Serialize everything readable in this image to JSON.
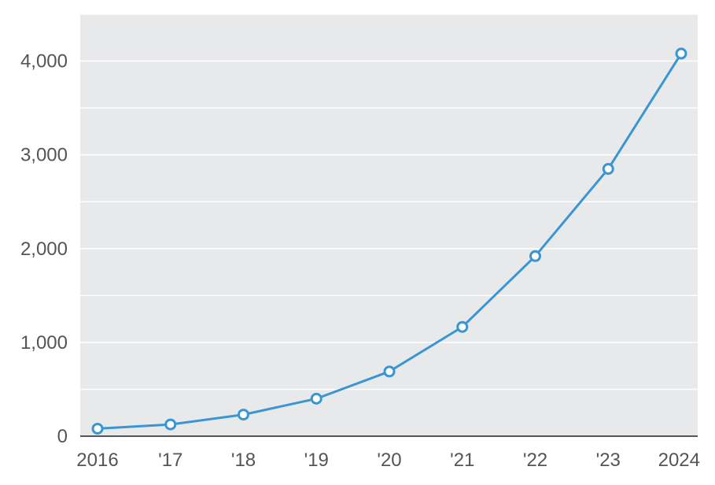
{
  "chart_data": {
    "type": "line",
    "title": "",
    "xlabel": "",
    "ylabel": "",
    "x": [
      "2016",
      "'17",
      "'18",
      "'19",
      "'20",
      "'21",
      "'22",
      "'23",
      "2024"
    ],
    "series": [
      {
        "values": [
          80,
          125,
          230,
          400,
          690,
          1165,
          1920,
          2850,
          4080
        ]
      }
    ],
    "ylim": [
      0,
      4500
    ],
    "yticks": [
      0,
      1000,
      2000,
      3000,
      4000
    ],
    "ytick_labels": [
      "0",
      "1,000",
      "2,000",
      "3,000",
      "4,000"
    ],
    "grid": true,
    "legend": "none",
    "colors": {
      "line": "#3a96d2",
      "marker_fill": "#ffffff",
      "plot_background": "#e8e9eb",
      "gridline": "#ffffff",
      "axis": "#555555"
    }
  }
}
